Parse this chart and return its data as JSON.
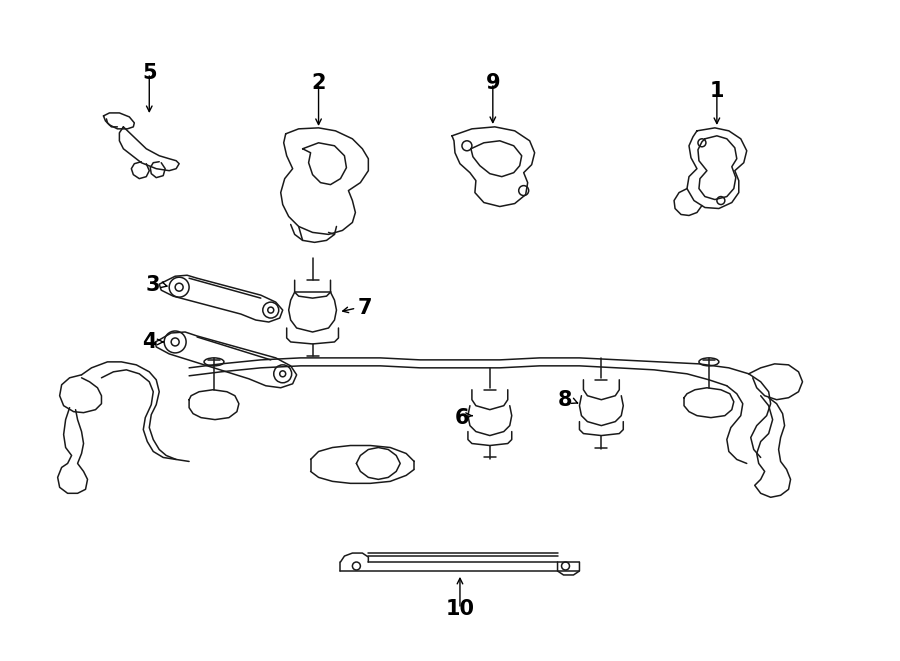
{
  "bg_color": "#ffffff",
  "line_color": "#1a1a1a",
  "fig_width": 9.0,
  "fig_height": 6.61,
  "dpi": 100,
  "lw": 1.1
}
